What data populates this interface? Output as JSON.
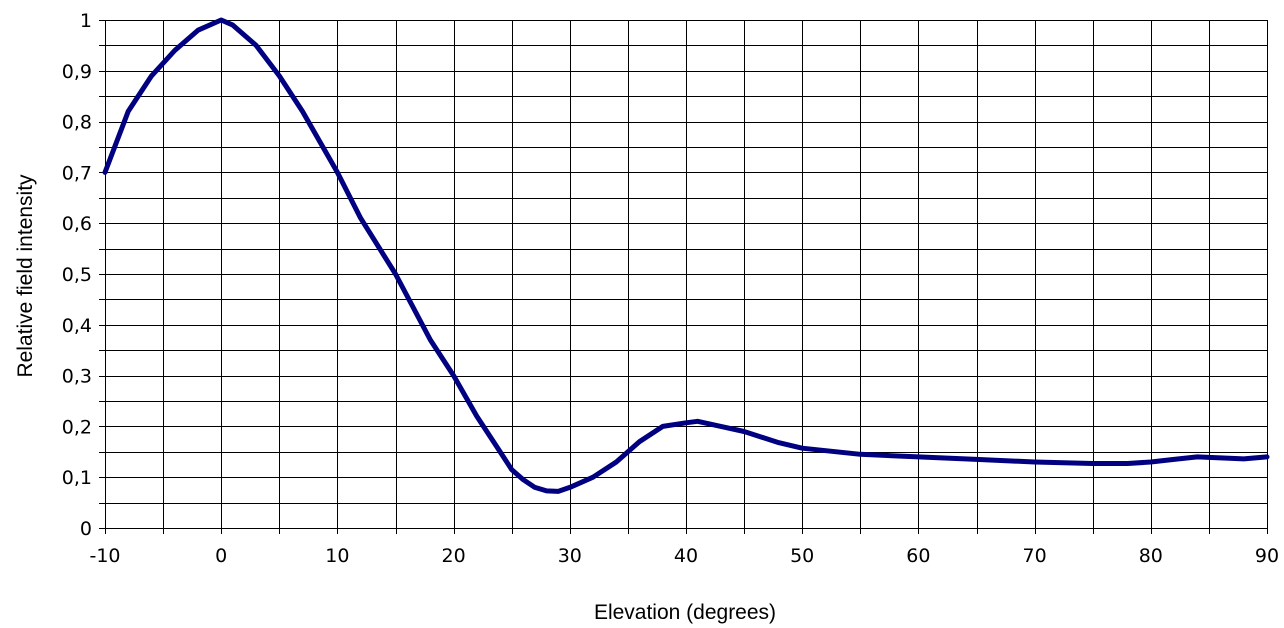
{
  "chart_data": {
    "type": "line",
    "title": "",
    "xlabel": "Elevation (degrees)",
    "ylabel": "Relative field intensity",
    "xlim": [
      -10,
      90
    ],
    "ylim": [
      0,
      1
    ],
    "x_tick_labels": [
      "-10",
      "0",
      "10",
      "20",
      "30",
      "40",
      "50",
      "60",
      "70",
      "80",
      "90"
    ],
    "y_tick_labels": [
      "0",
      "0,1",
      "0,2",
      "0,3",
      "0,4",
      "0,5",
      "0,6",
      "0,7",
      "0,8",
      "0,9",
      "1"
    ],
    "grid": true,
    "legend": "none",
    "colors": {
      "line": "#000080",
      "grid": "#000000",
      "background": "#ffffff"
    },
    "series": [
      {
        "x": [
          -10,
          -9,
          -8,
          -6,
          -4,
          -2,
          0,
          1,
          3,
          5,
          7,
          10,
          12,
          15,
          18,
          20,
          22,
          24,
          25,
          26,
          27,
          28,
          29,
          30,
          32,
          34,
          36,
          38,
          40,
          41,
          43,
          45,
          48,
          50,
          55,
          60,
          65,
          70,
          75,
          78,
          80,
          82,
          84,
          86,
          88,
          90
        ],
        "y": [
          0.7,
          0.76,
          0.82,
          0.89,
          0.94,
          0.98,
          1.0,
          0.99,
          0.95,
          0.89,
          0.82,
          0.7,
          0.61,
          0.5,
          0.37,
          0.3,
          0.22,
          0.15,
          0.115,
          0.095,
          0.08,
          0.073,
          0.072,
          0.08,
          0.1,
          0.13,
          0.17,
          0.2,
          0.207,
          0.21,
          0.2,
          0.19,
          0.168,
          0.157,
          0.145,
          0.14,
          0.135,
          0.13,
          0.127,
          0.127,
          0.13,
          0.135,
          0.14,
          0.138,
          0.136,
          0.14
        ]
      }
    ]
  }
}
